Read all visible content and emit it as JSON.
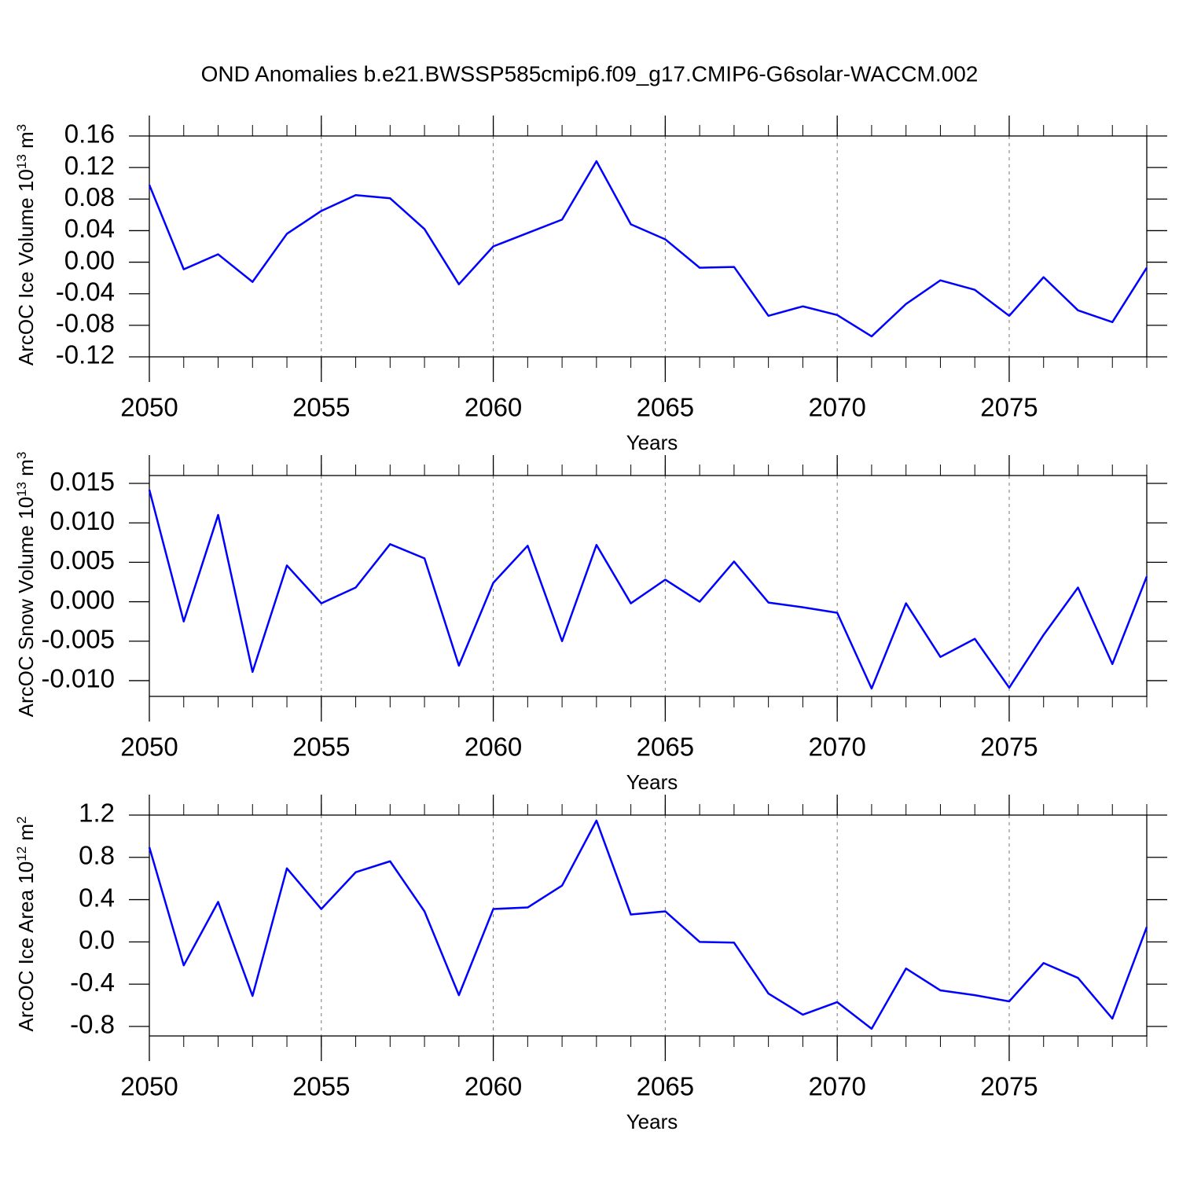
{
  "chart_data": [
    {
      "type": "line",
      "title": "OND Anomalies b.e21.BWSSP585cmip6.f09_g17.CMIP6-G6solar-WACCM.002",
      "xlabel": "Years",
      "ylabel": [
        "ArcOC Ice Volume 10",
        "13",
        " m",
        "3"
      ],
      "x": [
        2050,
        2051,
        2052,
        2053,
        2054,
        2055,
        2056,
        2057,
        2058,
        2059,
        2060,
        2061,
        2062,
        2063,
        2064,
        2065,
        2066,
        2067,
        2068,
        2069,
        2070,
        2071,
        2072,
        2073,
        2074,
        2075,
        2076,
        2077,
        2078,
        2079
      ],
      "values": [
        0.098,
        -0.009,
        0.01,
        -0.025,
        0.036,
        0.065,
        0.085,
        0.081,
        0.042,
        -0.028,
        0.02,
        0.037,
        0.054,
        0.128,
        0.048,
        0.029,
        -0.007,
        -0.006,
        -0.068,
        -0.056,
        -0.067,
        -0.094,
        -0.053,
        -0.023,
        -0.035,
        -0.068,
        -0.019,
        -0.061,
        -0.076,
        -0.007
      ],
      "color": "#0000ff",
      "xlim": [
        2050,
        2079
      ],
      "xticks": [
        2050,
        2055,
        2060,
        2065,
        2070,
        2075
      ],
      "ylim": [
        -0.12,
        0.16
      ],
      "yticks": [
        -0.12,
        -0.08,
        -0.04,
        {
          "value": 0,
          "label": "0.00"
        },
        0.04,
        0.08,
        0.12,
        0.16
      ],
      "grid": true
    },
    {
      "type": "line",
      "xlabel": "Years",
      "ylabel": [
        "ArcOC Snow Volume 10",
        "13",
        " m",
        "3"
      ],
      "x": [
        2050,
        2051,
        2052,
        2053,
        2054,
        2055,
        2056,
        2057,
        2058,
        2059,
        2060,
        2061,
        2062,
        2063,
        2064,
        2065,
        2066,
        2067,
        2068,
        2069,
        2070,
        2071,
        2072,
        2073,
        2074,
        2075,
        2076,
        2077,
        2078,
        2079
      ],
      "values": [
        0.0142,
        -0.0025,
        0.011,
        -0.0089,
        0.0046,
        -0.0002,
        0.0018,
        0.0073,
        0.0055,
        -0.0081,
        0.0024,
        0.0071,
        -0.005,
        0.0072,
        -0.0002,
        0.0028,
        0.0,
        0.0051,
        -0.0001,
        -0.0007,
        -0.0014,
        -0.011,
        -0.0002,
        -0.007,
        -0.0047,
        -0.0109,
        -0.0042,
        0.0018,
        -0.0079,
        0.0032
      ],
      "color": "#0000ff",
      "xlim": [
        2050,
        2079
      ],
      "xticks": [
        2050,
        2055,
        2060,
        2065,
        2070,
        2075
      ],
      "ylim": [
        -0.012,
        0.016
      ],
      "yticks": [
        {
          "value": -0.01,
          "label": "-0.010"
        },
        -0.005,
        {
          "value": 0,
          "label": "0.000"
        },
        0.005,
        {
          "value": 0.01,
          "label": "0.010"
        },
        0.015
      ],
      "grid": true
    },
    {
      "type": "line",
      "xlabel": "Years",
      "ylabel": [
        "ArcOC Ice Area 10",
        "12",
        " m",
        "2"
      ],
      "x": [
        2050,
        2051,
        2052,
        2053,
        2054,
        2055,
        2056,
        2057,
        2058,
        2059,
        2060,
        2061,
        2062,
        2063,
        2064,
        2065,
        2066,
        2067,
        2068,
        2069,
        2070,
        2071,
        2072,
        2073,
        2074,
        2075,
        2076,
        2077,
        2078,
        2079
      ],
      "values": [
        0.896,
        -0.222,
        0.378,
        -0.511,
        0.696,
        0.311,
        0.659,
        0.763,
        0.289,
        -0.504,
        0.311,
        0.326,
        0.533,
        1.148,
        0.259,
        0.289,
        0.0,
        -0.007,
        -0.489,
        -0.689,
        -0.57,
        -0.822,
        -0.252,
        -0.459,
        -0.504,
        -0.563,
        -0.2,
        -0.341,
        -0.726,
        0.141
      ],
      "color": "#0000ff",
      "xlim": [
        2050,
        2079
      ],
      "xticks": [
        2050,
        2055,
        2060,
        2065,
        2070,
        2075
      ],
      "ylim": [
        -0.89,
        1.2
      ],
      "yticks": [
        -0.8,
        -0.4,
        {
          "value": 0,
          "label": "0.0"
        },
        0.4,
        0.8,
        1.2
      ],
      "grid": true
    }
  ]
}
